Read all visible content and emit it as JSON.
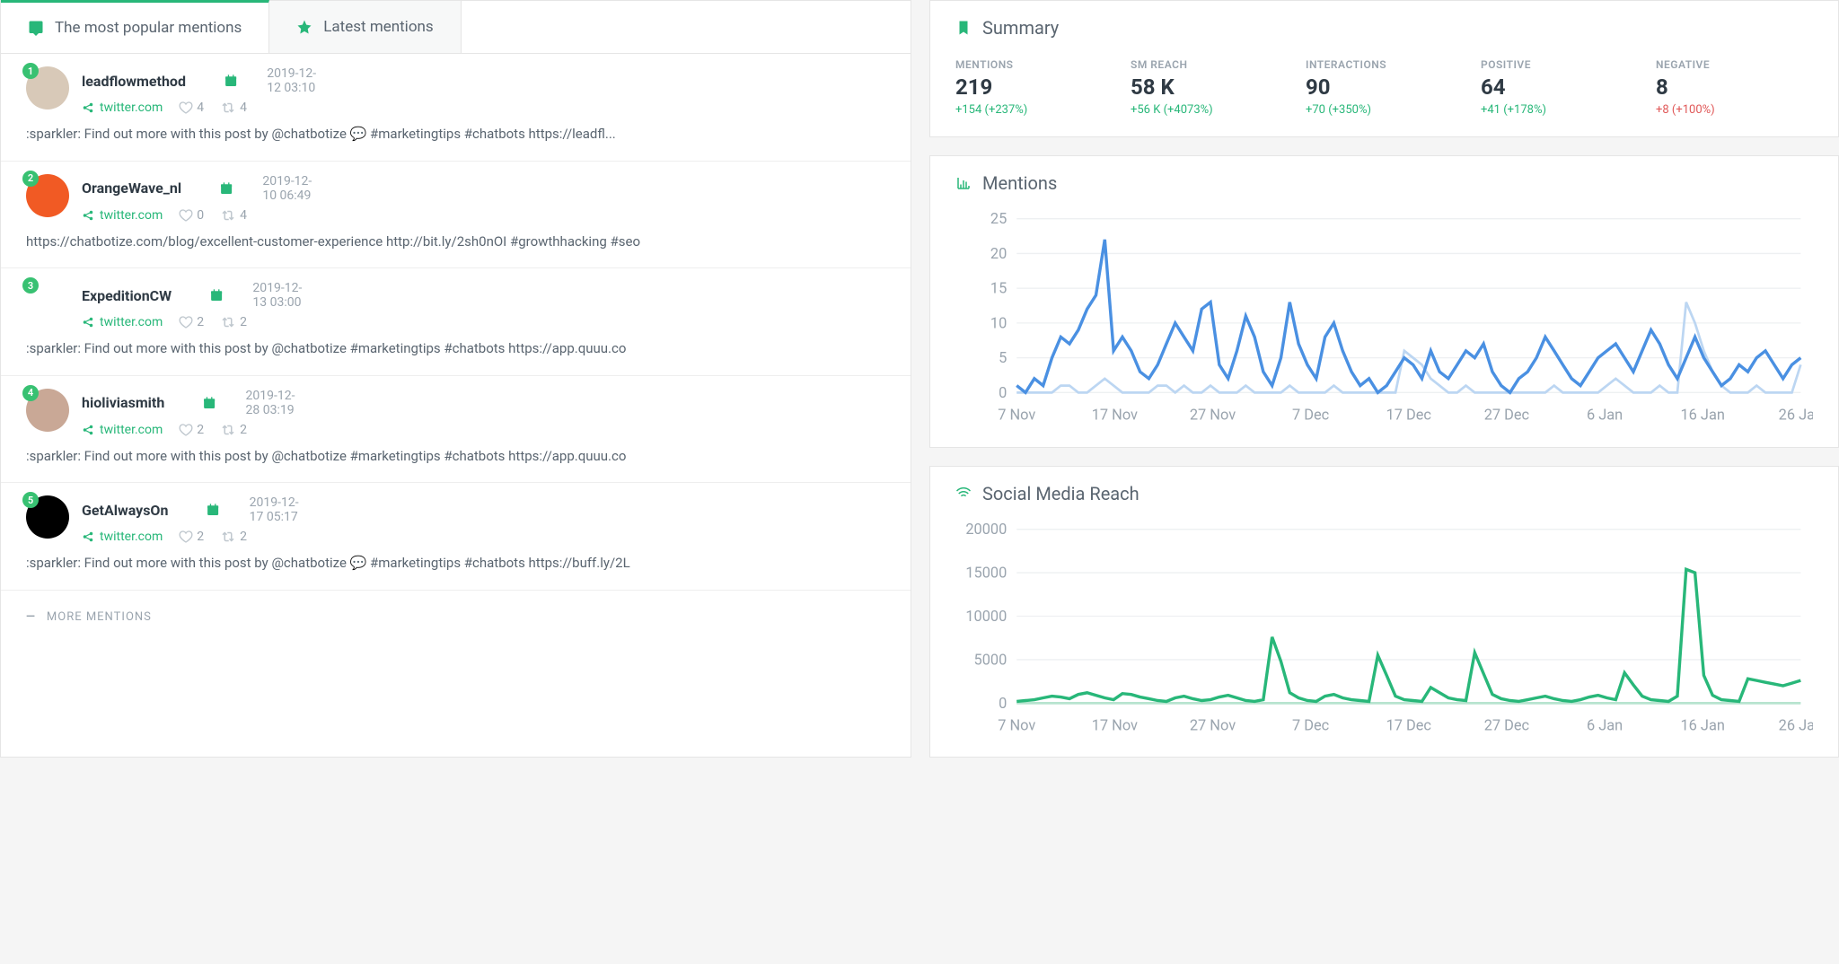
{
  "tabs": {
    "popular": "The most popular mentions",
    "latest": "Latest mentions"
  },
  "mentions": [
    {
      "rank": "1",
      "user": "leadflowmethod",
      "date": "2019-12-12 03:10",
      "source": "twitter.com",
      "likes": "4",
      "retweets": "4",
      "body": ":sparkler: Find out more with this post by @chatbotize 💬  #marketingtips #chatbots https://leadfl...",
      "avatar_bg": "#d8c9b8"
    },
    {
      "rank": "2",
      "user": "OrangeWave_nl",
      "date": "2019-12-10 06:49",
      "source": "twitter.com",
      "likes": "0",
      "retweets": "4",
      "body": "https://chatbotize.com/blog/excellent-customer-experience http://bit.ly/2sh0nOI #growthhacking #seo",
      "avatar_bg": "#f15a24"
    },
    {
      "rank": "3",
      "user": "ExpeditionCW",
      "date": "2019-12-13 03:00",
      "source": "twitter.com",
      "likes": "2",
      "retweets": "2",
      "body": ":sparkler: Find out more with this post by @chatbotize #marketingtips #chatbots https://app.quuu.co",
      "avatar_bg": "#ffffff"
    },
    {
      "rank": "4",
      "user": "hioliviasmith",
      "date": "2019-12-28 03:19",
      "source": "twitter.com",
      "likes": "2",
      "retweets": "2",
      "body": ":sparkler: Find out more with this post by @chatbotize #marketingtips #chatbots https://app.quuu.co",
      "avatar_bg": "#c9a896"
    },
    {
      "rank": "5",
      "user": "GetAlwaysOn",
      "date": "2019-12-17 05:17",
      "source": "twitter.com",
      "likes": "2",
      "retweets": "2",
      "body": ":sparkler: Find out more with this post by @chatbotize 💬  #marketingtips #chatbots https://buff.ly/2L",
      "avatar_bg": "#000000"
    }
  ],
  "more_label": "MORE MENTIONS",
  "summary": {
    "title": "Summary",
    "metrics": [
      {
        "label": "MENTIONS",
        "value": "219",
        "delta": "+154  (+237%)",
        "delta_class": "pos"
      },
      {
        "label": "SM REACH",
        "value": "58 K",
        "delta": "+56 K  (+4073%)",
        "delta_class": "pos"
      },
      {
        "label": "INTERACTIONS",
        "value": "90",
        "delta": "+70  (+350%)",
        "delta_class": "pos"
      },
      {
        "label": "POSITIVE",
        "value": "64",
        "delta": "+41  (+178%)",
        "delta_class": "pos"
      },
      {
        "label": "NEGATIVE",
        "value": "8",
        "delta": "+8  (+100%)",
        "delta_class": "neg"
      }
    ]
  },
  "mentions_chart": {
    "title": "Mentions",
    "type": "line",
    "ylim": [
      0,
      25
    ],
    "ytick_step": 5,
    "x_labels": [
      "7 Nov",
      "17 Nov",
      "27 Nov",
      "7 Dec",
      "17 Dec",
      "27 Dec",
      "6 Jan",
      "16 Jan",
      "26 Jan"
    ],
    "n_points": 90,
    "main_color": "#4a90e2",
    "secondary_color": "#bcd6f2",
    "grid_color": "#eef0f2",
    "main_values": [
      1,
      0,
      2,
      1,
      5,
      8,
      7,
      9,
      12,
      14,
      22,
      6,
      8,
      6,
      3,
      2,
      4,
      7,
      10,
      8,
      6,
      12,
      13,
      4,
      2,
      6,
      11,
      8,
      3,
      1,
      5,
      13,
      7,
      4,
      2,
      8,
      10,
      6,
      3,
      1,
      2,
      0,
      1,
      3,
      5,
      4,
      2,
      6,
      3,
      2,
      4,
      6,
      5,
      7,
      3,
      1,
      0,
      2,
      3,
      5,
      8,
      6,
      4,
      2,
      1,
      3,
      5,
      6,
      7,
      5,
      3,
      6,
      9,
      7,
      4,
      2,
      5,
      8,
      5,
      3,
      1,
      2,
      4,
      3,
      5,
      6,
      4,
      2,
      4,
      5
    ],
    "secondary_values": [
      0,
      0,
      0,
      0,
      0,
      1,
      1,
      0,
      0,
      1,
      2,
      1,
      0,
      0,
      0,
      0,
      1,
      1,
      0,
      1,
      0,
      0,
      1,
      0,
      0,
      0,
      1,
      0,
      0,
      0,
      0,
      1,
      0,
      0,
      0,
      0,
      1,
      0,
      0,
      0,
      0,
      0,
      0,
      0,
      6,
      5,
      4,
      2,
      1,
      0,
      0,
      1,
      0,
      0,
      0,
      0,
      0,
      0,
      0,
      0,
      0,
      1,
      0,
      0,
      0,
      0,
      0,
      1,
      2,
      1,
      0,
      0,
      0,
      1,
      0,
      0,
      13,
      10,
      6,
      3,
      1,
      0,
      0,
      0,
      1,
      0,
      0,
      0,
      0,
      4
    ]
  },
  "reach_chart": {
    "title": "Social Media Reach",
    "type": "line",
    "ylim": [
      0,
      20000
    ],
    "ytick_step": 5000,
    "x_labels": [
      "7 Nov",
      "17 Nov",
      "27 Nov",
      "7 Dec",
      "17 Dec",
      "27 Dec",
      "6 Jan",
      "16 Jan",
      "26 Jan"
    ],
    "n_points": 90,
    "main_color": "#28b779",
    "secondary_color": "#b7e4cf",
    "grid_color": "#eef0f2",
    "main_values": [
      200,
      300,
      400,
      600,
      800,
      700,
      500,
      1000,
      1200,
      900,
      600,
      400,
      1100,
      1000,
      700,
      500,
      300,
      200,
      600,
      800,
      500,
      300,
      400,
      700,
      900,
      600,
      300,
      200,
      400,
      7600,
      4800,
      1200,
      600,
      300,
      200,
      800,
      1000,
      600,
      400,
      300,
      200,
      5500,
      3200,
      800,
      400,
      300,
      200,
      1800,
      1200,
      600,
      400,
      300,
      5800,
      3400,
      1000,
      500,
      300,
      200,
      400,
      600,
      800,
      500,
      300,
      200,
      400,
      700,
      900,
      600,
      400,
      3500,
      2100,
      800,
      400,
      300,
      200,
      800,
      15400,
      15000,
      3200,
      900,
      400,
      300,
      200,
      2800,
      2600,
      2400,
      2200,
      2000,
      2300,
      2600
    ],
    "secondary_values": [
      0,
      0,
      0,
      0,
      0,
      0,
      0,
      0,
      0,
      0,
      0,
      0,
      0,
      0,
      0,
      0,
      0,
      0,
      0,
      0,
      0,
      0,
      0,
      0,
      0,
      0,
      0,
      0,
      0,
      0,
      0,
      0,
      0,
      0,
      0,
      0,
      0,
      0,
      0,
      0,
      0,
      0,
      0,
      0,
      0,
      0,
      0,
      0,
      0,
      0,
      0,
      0,
      0,
      0,
      0,
      0,
      0,
      0,
      0,
      0,
      0,
      0,
      0,
      0,
      0,
      0,
      0,
      0,
      0,
      0,
      0,
      0,
      0,
      0,
      0,
      0,
      0,
      0,
      0,
      0,
      0,
      0,
      0,
      0,
      0,
      0,
      0,
      0,
      0,
      0
    ]
  }
}
